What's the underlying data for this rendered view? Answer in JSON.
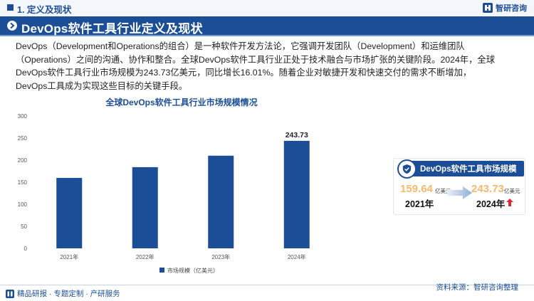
{
  "header": {
    "section_title": "1. 定义及现状",
    "logo_text": "智研咨询"
  },
  "banner": {
    "title": "DevOps软件工具行业定义及现状"
  },
  "intro": {
    "line1": "DevOps（Development和Operations的组合）是一种软件开发方法论，它强调开发团队（Development）和运维团队",
    "line2": "（Operations）之间的沟通、协作和整合。全球DevOps软件工具行业正处于技术融合与市场扩张的关键阶段。2024年，全球",
    "line3": "DevOps软件工具行业市场规模为243.73亿美元，同比增长16.01%。随着企业对敏捷开发和快速交付的需求不断增加，",
    "line4": "DevOps工具成为实现这些目标的关键手段。"
  },
  "chart_data": {
    "type": "bar",
    "title": "全球DevOps软件工具行业市场规模情况",
    "categories": [
      "2021年",
      "2022年",
      "2023年",
      "2024年"
    ],
    "series": [
      {
        "name": "市场规模（亿美元）",
        "values": [
          159.64,
          184,
          210,
          243.73
        ],
        "color": "#1b4e96"
      }
    ],
    "data_labels": [
      "",
      "",
      "",
      "243.73"
    ],
    "y_ticks": [
      "0",
      "50",
      "100",
      "150",
      "200",
      "250",
      "300"
    ],
    "ylim": [
      0,
      300
    ],
    "grid": false,
    "legend_position": "bottom"
  },
  "card": {
    "title": "DevOps软件工具市场规模",
    "old_value": "159.64",
    "old_unit": "亿美元",
    "old_year": "2021年",
    "new_value": "243.73",
    "new_unit": "亿美元",
    "new_year": "2024年"
  },
  "footer": {
    "tags": "精品研报 · 专题定制 · 产研服务",
    "source": "资料来源：智研咨询整理"
  },
  "colors": {
    "brand": "#1b4e96",
    "value_accent": "#f6b96b",
    "up_arrow": "#d32f2f"
  }
}
